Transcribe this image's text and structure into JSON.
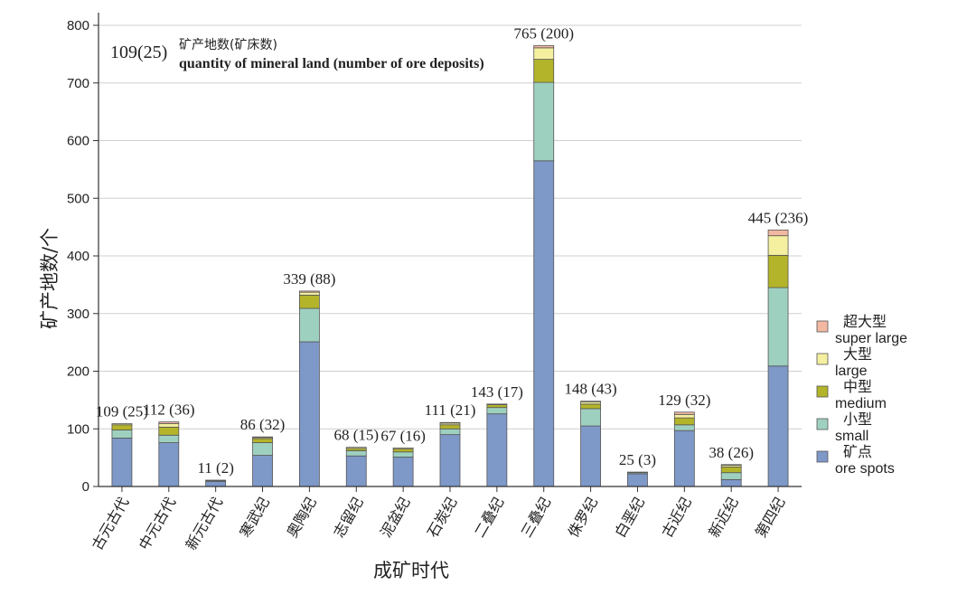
{
  "chart_data": {
    "type": "bar",
    "stacked": true,
    "xlabel": "成矿时代",
    "ylabel": "矿产地数/个",
    "ylim": [
      0,
      800
    ],
    "yticks": [
      0,
      100,
      200,
      300,
      400,
      500,
      600,
      700,
      800
    ],
    "grid": "horizontal",
    "legend_position": "right",
    "categories": [
      "古元古代",
      "中元古代",
      "新元古代",
      "寒武纪",
      "奥陶纪",
      "志留纪",
      "泥盆纪",
      "石炭纪",
      "二叠纪",
      "三叠纪",
      "侏罗纪",
      "白垩纪",
      "古近纪",
      "新近纪",
      "第四纪"
    ],
    "bar_labels": [
      "109 (25)",
      "112 (36)",
      "11 (2)",
      "86 (32)",
      "339 (88)",
      "68 (15)",
      "67 (16)",
      "111 (21)",
      "143 (17)",
      "765 (200)",
      "148 (43)",
      "25 (3)",
      "129 (32)",
      "38 (26)",
      "445 (236)"
    ],
    "series": [
      {
        "name_zh": "矿点",
        "name_en": "ore spots",
        "color": "#7e98c8",
        "values": [
          84,
          76,
          9,
          54,
          251,
          53,
          51,
          90,
          126,
          565,
          105,
          22,
          97,
          12,
          209
        ]
      },
      {
        "name_zh": "小型",
        "name_en": "small",
        "color": "#9ed0c0",
        "values": [
          14,
          13,
          1,
          22,
          58,
          9,
          9,
          10,
          11,
          136,
          30,
          2,
          10,
          12,
          136
        ]
      },
      {
        "name_zh": "中型",
        "name_en": "medium",
        "color": "#b4b42a",
        "values": [
          9,
          14,
          1,
          7,
          23,
          4,
          5,
          7,
          5,
          40,
          8,
          1,
          12,
          10,
          56
        ]
      },
      {
        "name_zh": "大型",
        "name_en": "large",
        "color": "#f5f0a0",
        "values": [
          2,
          6,
          0,
          2,
          5,
          2,
          2,
          3,
          1,
          20,
          4,
          0,
          6,
          3,
          34
        ]
      },
      {
        "name_zh": "超大型",
        "name_en": "super large",
        "color": "#f2b8a2",
        "values": [
          0,
          3,
          0,
          1,
          2,
          0,
          0,
          1,
          0,
          4,
          1,
          0,
          4,
          1,
          10
        ]
      }
    ],
    "annotation": {
      "example": "109(25)",
      "text_zh": "矿产地数(矿床数)",
      "text_en": "quantity of mineral land (number of ore deposits)"
    }
  }
}
